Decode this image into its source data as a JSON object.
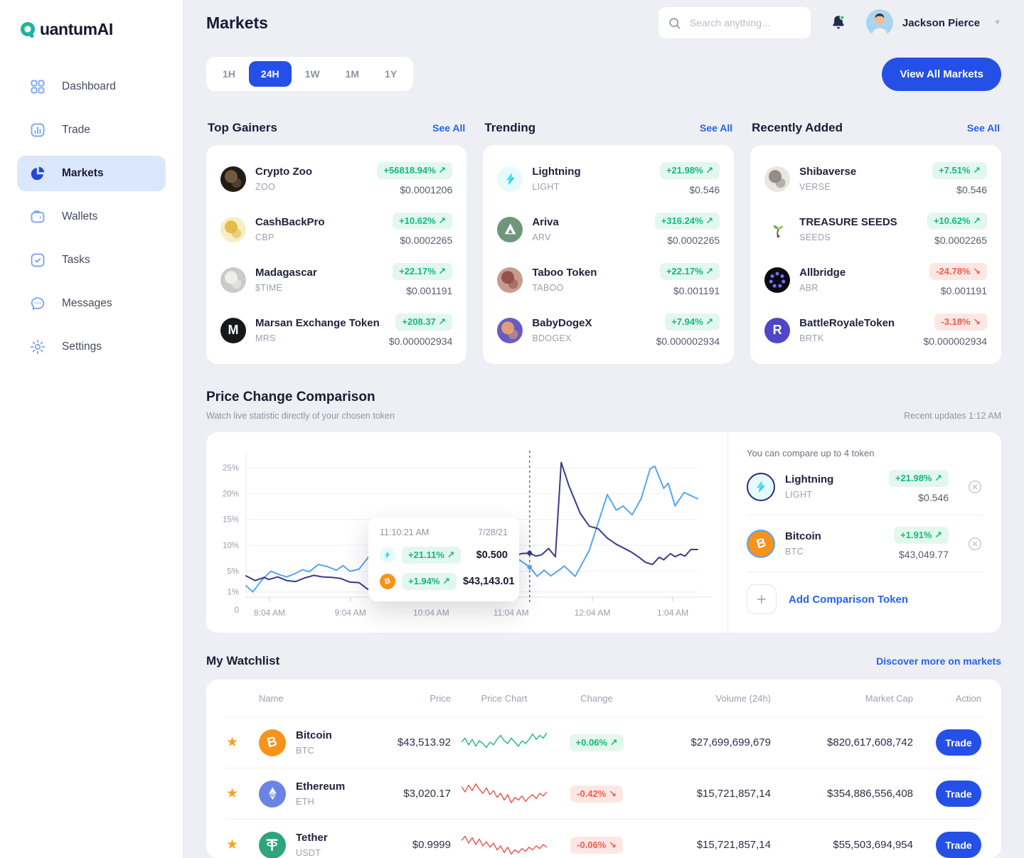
{
  "app": {
    "logo_text": "QuantumAI",
    "logo_rest": "uantumAI"
  },
  "theme": {
    "primary": "#2450e8",
    "link": "#2563eb",
    "positive": "#14b87e",
    "positive_bg": "#e3f7ee",
    "negative": "#f25c4b",
    "negative_bg": "#fde7e4",
    "chart_light_blue": "#55a6f3",
    "chart_indigo": "#3b3a8f",
    "star": "#f0a420",
    "sidebar_icon": "#7ea7f8",
    "active_nav_bg": "#dbe7fc"
  },
  "glyphs": {
    "up_arrow": "↗",
    "down_arrow": "↘"
  },
  "sidebar": {
    "items": [
      {
        "label": "Dashboard",
        "icon": "dashboard-grid-icon",
        "active": false
      },
      {
        "label": "Trade",
        "icon": "trade-chart-icon",
        "active": false
      },
      {
        "label": "Markets",
        "icon": "markets-pie-icon",
        "active": true
      },
      {
        "label": "Wallets",
        "icon": "wallet-icon",
        "active": false
      },
      {
        "label": "Tasks",
        "icon": "tasks-check-icon",
        "active": false
      },
      {
        "label": "Messages",
        "icon": "messages-chat-icon",
        "active": false
      },
      {
        "label": "Settings",
        "icon": "settings-gear-icon",
        "active": false
      }
    ]
  },
  "header": {
    "title": "Markets",
    "search_placeholder": "Search anything...",
    "user_name": "Jackson Pierce"
  },
  "toolbar": {
    "timeframes": [
      "1H",
      "24H",
      "1W",
      "1M",
      "1Y"
    ],
    "active": "24H",
    "view_all_label": "View All Markets"
  },
  "market_sections": [
    {
      "title": "Top Gainers",
      "see_all": "See All",
      "tokens": [
        {
          "name": "Crypto Zoo",
          "symbol": "ZOO",
          "change": "+56818.94%",
          "dir": "up",
          "price": "$0.0001206",
          "icon": {
            "kind": "blob",
            "name": "crypto-zoo",
            "bg": "#241b12",
            "fg": "#7a6147"
          }
        },
        {
          "name": "CashBackPro",
          "symbol": "CBP",
          "change": "+10.62%",
          "dir": "up",
          "price": "$0.0002265",
          "icon": {
            "kind": "blob",
            "name": "cashbackpro",
            "bg": "#f7eec9",
            "fg": "#e0b63c"
          }
        },
        {
          "name": "Madagascar",
          "symbol": "$TIME",
          "change": "+22.17%",
          "dir": "up",
          "price": "$0.001191",
          "icon": {
            "kind": "blob",
            "name": "madagascar",
            "bg": "#c9cbc7",
            "fg": "#f2f2ef"
          }
        },
        {
          "name": "Marsan Exchange Token",
          "symbol": "MRS",
          "change": "+208.37",
          "dir": "up",
          "price": "$0.000002934",
          "icon": {
            "kind": "letter",
            "name": "marsan",
            "bg": "#17181a",
            "fg": "#ffffff",
            "text": "M"
          }
        }
      ]
    },
    {
      "title": "Trending",
      "see_all": "See All",
      "tokens": [
        {
          "name": "Lightning",
          "symbol": "LIGHT",
          "change": "+21.98%",
          "dir": "up",
          "price": "$0.546",
          "icon": {
            "kind": "bolt",
            "name": "lightning",
            "bg": "#e6fbfc"
          }
        },
        {
          "name": "Ariva",
          "symbol": "ARV",
          "change": "+316.24%",
          "dir": "up",
          "price": "$0.0002265",
          "icon": {
            "kind": "triangle",
            "name": "ariva",
            "bg": "#6f9678",
            "fg": "#ffffff"
          }
        },
        {
          "name": "Taboo Token",
          "symbol": "TABOO",
          "change": "+22.17%",
          "dir": "up",
          "price": "$0.001191",
          "icon": {
            "kind": "blob",
            "name": "taboo",
            "bg": "#c79c90",
            "fg": "#8d4b43"
          }
        },
        {
          "name": "BabyDogeX",
          "symbol": "BDOGEX",
          "change": "+7.94%",
          "dir": "up",
          "price": "$0.000002934",
          "icon": {
            "kind": "blob",
            "name": "babydogex",
            "bg": "#6a5ac4",
            "fg": "#e8a66a"
          }
        }
      ]
    },
    {
      "title": "Recently Added",
      "see_all": "See All",
      "tokens": [
        {
          "name": "Shibaverse",
          "symbol": "VERSE",
          "change": "+7.51%",
          "dir": "up",
          "price": "$0.546",
          "icon": {
            "kind": "blob",
            "name": "shibaverse",
            "bg": "#e9e5e1",
            "fg": "#8a847e"
          }
        },
        {
          "name": "TREASURE SEEDS",
          "symbol": "SEEDS",
          "change": "+10.62%",
          "dir": "up",
          "price": "$0.0002265",
          "icon": {
            "kind": "sprout",
            "name": "treasure-seeds",
            "bg": "#ffffff"
          }
        },
        {
          "name": "Allbridge",
          "symbol": "ABR",
          "change": "-24.78%",
          "dir": "down",
          "price": "$0.001191",
          "icon": {
            "kind": "dots",
            "name": "allbridge",
            "bg": "#0b0b0d",
            "fg": "#7a6cf2"
          }
        },
        {
          "name": "BattleRoyaleToken",
          "symbol": "BRTK",
          "change": "-3.18%",
          "dir": "down",
          "price": "$0.000002934",
          "icon": {
            "kind": "letter",
            "name": "battleroyaletoken",
            "bg": "#4f46c8",
            "fg": "#ffffff",
            "text": "R"
          }
        }
      ]
    }
  ],
  "comparison": {
    "title": "Price Change Comparison",
    "subtitle": "Watch live statistic directly of your chosen token",
    "updated": "Recent updates 1:12 AM",
    "note": "You can compare up to 4 token",
    "add_label": "Add Comparison Token",
    "tokens": [
      {
        "name": "Lightning",
        "symbol": "LIGHT",
        "change": "+21.98%",
        "dir": "up",
        "price": "$0.546",
        "ring": "#2d2a7e",
        "icon": {
          "kind": "bolt",
          "name": "lightning",
          "bg": "#e6fbfc"
        }
      },
      {
        "name": "Bitcoin",
        "symbol": "BTC",
        "change": "+1.91%",
        "dir": "up",
        "price": "$43,049.77",
        "ring": "#55a6f3",
        "icon": {
          "kind": "letter",
          "name": "bitcoin",
          "bg": "#f7931a",
          "fg": "#ffffff",
          "text": "B",
          "tilt": true
        }
      }
    ],
    "tooltip": {
      "time": "11:10:21 AM",
      "date": "7/28/21",
      "rows": [
        {
          "token": "lightning",
          "change": "+21.11%",
          "dir": "up",
          "value": "$0.500",
          "icon": {
            "kind": "bolt",
            "name": "lightning",
            "bg": "#e6fbfc"
          }
        },
        {
          "token": "bitcoin",
          "change": "+1.94%",
          "dir": "up",
          "value": "$43,143.01",
          "icon": {
            "kind": "letter",
            "name": "bitcoin",
            "bg": "#f7931a",
            "fg": "#ffffff",
            "text": "B",
            "tilt": true
          }
        }
      ]
    },
    "chart_data": {
      "type": "line",
      "x_ticks": [
        "8:04 AM",
        "9:04 AM",
        "10:04 AM",
        "11:04 AM",
        "12:04 AM",
        "1:04 AM"
      ],
      "x_tick_pos": [
        5.2,
        23.1,
        41,
        58.7,
        76.7,
        94.5
      ],
      "y_ticks": [
        {
          "label": "25%",
          "value": 25
        },
        {
          "label": "20%",
          "value": 20
        },
        {
          "label": "15%",
          "value": 15
        },
        {
          "label": "10%",
          "value": 10
        },
        {
          "label": "5%",
          "value": 5
        },
        {
          "label": "1%",
          "value": 1
        }
      ],
      "origin_label": "0",
      "ylim": [
        0,
        28
      ],
      "grid": true,
      "cursor_x": 62.8,
      "markers": [
        {
          "x": 62.8,
          "y": 8.5,
          "color": "#3b3a8f"
        },
        {
          "x": 62.8,
          "y": 5.8,
          "color": "#55a6f3"
        }
      ],
      "series": [
        {
          "name": "Lightning",
          "color": "#55a6f3",
          "points": [
            [
              0,
              2.2
            ],
            [
              1.5,
              1.0
            ],
            [
              3.5,
              3.3
            ],
            [
              5.5,
              5.0
            ],
            [
              7.5,
              4.3
            ],
            [
              9,
              3.9
            ],
            [
              11,
              4.6
            ],
            [
              12.5,
              5.3
            ],
            [
              14,
              4.9
            ],
            [
              16,
              6.3
            ],
            [
              18,
              5.9
            ],
            [
              20,
              5.2
            ],
            [
              21.5,
              6.1
            ],
            [
              23,
              5.0
            ],
            [
              25,
              5.4
            ],
            [
              27,
              7.6
            ],
            [
              29.5,
              11.0
            ],
            [
              31.5,
              6.7
            ],
            [
              33,
              5.6
            ],
            [
              34.5,
              4.3
            ],
            [
              38,
              4.9
            ],
            [
              43,
              5.7
            ],
            [
              48,
              6.5
            ],
            [
              53,
              7.3
            ],
            [
              58.7,
              8.3
            ],
            [
              62.8,
              5.8
            ],
            [
              64.5,
              4.0
            ],
            [
              66,
              5.2
            ],
            [
              67.5,
              4.1
            ],
            [
              69,
              5.0
            ],
            [
              70.5,
              6.0
            ],
            [
              72.9,
              4.0
            ],
            [
              76,
              9.0
            ],
            [
              80,
              19.8
            ],
            [
              82,
              16.8
            ],
            [
              83.5,
              17.6
            ],
            [
              85.5,
              15.9
            ],
            [
              87.5,
              19.0
            ],
            [
              89.5,
              24.8
            ],
            [
              90.5,
              25.3
            ],
            [
              92.5,
              21.0
            ],
            [
              93.5,
              22.0
            ],
            [
              95,
              17.6
            ],
            [
              97,
              20.2
            ],
            [
              100,
              19.0
            ]
          ]
        },
        {
          "name": "Bitcoin",
          "color": "#3b3a8f",
          "points": [
            [
              0,
              4.1
            ],
            [
              2,
              3.2
            ],
            [
              4,
              3.8
            ],
            [
              5,
              3.4
            ],
            [
              7,
              3.9
            ],
            [
              9,
              3.2
            ],
            [
              11,
              3.0
            ],
            [
              13,
              3.7
            ],
            [
              15,
              4.2
            ],
            [
              17,
              3.9
            ],
            [
              19,
              3.8
            ],
            [
              21,
              3.6
            ],
            [
              23,
              2.9
            ],
            [
              25,
              2.8
            ],
            [
              27,
              1.5
            ],
            [
              29,
              2.7
            ],
            [
              31,
              2.3
            ],
            [
              33,
              2.5
            ],
            [
              35,
              2.2
            ],
            [
              38,
              2.4
            ],
            [
              42,
              2.8
            ],
            [
              46,
              3.4
            ],
            [
              50,
              4.5
            ],
            [
              54,
              6.0
            ],
            [
              58,
              7.6
            ],
            [
              61,
              8.4
            ],
            [
              62.8,
              8.5
            ],
            [
              64.2,
              7.9
            ],
            [
              65.5,
              8.2
            ],
            [
              67,
              9.4
            ],
            [
              68.5,
              7.8
            ],
            [
              69.8,
              26.0
            ],
            [
              71.5,
              21.5
            ],
            [
              74,
              16.2
            ],
            [
              76,
              13.7
            ],
            [
              78,
              13.2
            ],
            [
              80,
              11.4
            ],
            [
              82,
              10.2
            ],
            [
              84,
              9.3
            ],
            [
              85.5,
              8.6
            ],
            [
              87,
              7.7
            ],
            [
              88.5,
              6.7
            ],
            [
              90,
              6.3
            ],
            [
              91.5,
              7.7
            ],
            [
              92.5,
              7.2
            ],
            [
              94,
              8.4
            ],
            [
              95,
              7.8
            ],
            [
              96.2,
              8.3
            ],
            [
              97.2,
              7.9
            ],
            [
              98.5,
              9.2
            ],
            [
              100,
              9.2
            ]
          ]
        }
      ]
    }
  },
  "watchlist": {
    "title": "My Watchlist",
    "link": "Discover more on markets",
    "columns": [
      "Name",
      "Price",
      "Price Chart",
      "Change",
      "Volume (24h)",
      "Market Cap",
      "Action"
    ],
    "rows": [
      {
        "name": "Bitcoin",
        "symbol": "BTC",
        "price": "$43,513.92",
        "spark_color": "#1db877",
        "spark": [
          10,
          13,
          8,
          12,
          7,
          11,
          9,
          6,
          10,
          8,
          12,
          15,
          11,
          9,
          13,
          10,
          7,
          11,
          9,
          12,
          16,
          12,
          15,
          13,
          17
        ],
        "change": "+0.06%",
        "dir": "up",
        "volume": "$27,699,699,679",
        "market_cap": "$820,617,608,742",
        "action": "Trade",
        "icon": {
          "kind": "letter",
          "name": "bitcoin",
          "bg": "#f7931a",
          "fg": "#ffffff",
          "text": "B",
          "tilt": true
        }
      },
      {
        "name": "Ethereum",
        "symbol": "ETH",
        "price": "$3,020.17",
        "spark_color": "#e8524a",
        "spark": [
          15,
          11,
          16,
          12,
          17,
          13,
          10,
          14,
          9,
          12,
          7,
          10,
          5,
          9,
          3,
          7,
          5,
          8,
          4,
          7,
          9,
          6,
          10,
          8,
          11
        ],
        "change": "-0.42%",
        "dir": "down",
        "volume": "$15,721,857,14",
        "market_cap": "$354,886,556,408",
        "action": "Trade",
        "icon": {
          "kind": "eth",
          "name": "ethereum",
          "bg": "#6b83e4"
        }
      },
      {
        "name": "Tether",
        "symbol": "USDT",
        "price": "$0.9999",
        "spark_color": "#e8524a",
        "spark": [
          13,
          16,
          11,
          15,
          10,
          14,
          9,
          12,
          8,
          11,
          6,
          9,
          4,
          8,
          3,
          6,
          4,
          7,
          5,
          8,
          6,
          9,
          7,
          10,
          8
        ],
        "change": "-0.06%",
        "dir": "down",
        "volume": "$15,721,857,14",
        "market_cap": "$55,503,694,954",
        "action": "Trade",
        "icon": {
          "kind": "tether",
          "name": "tether",
          "bg": "#2ea57c"
        }
      }
    ]
  }
}
